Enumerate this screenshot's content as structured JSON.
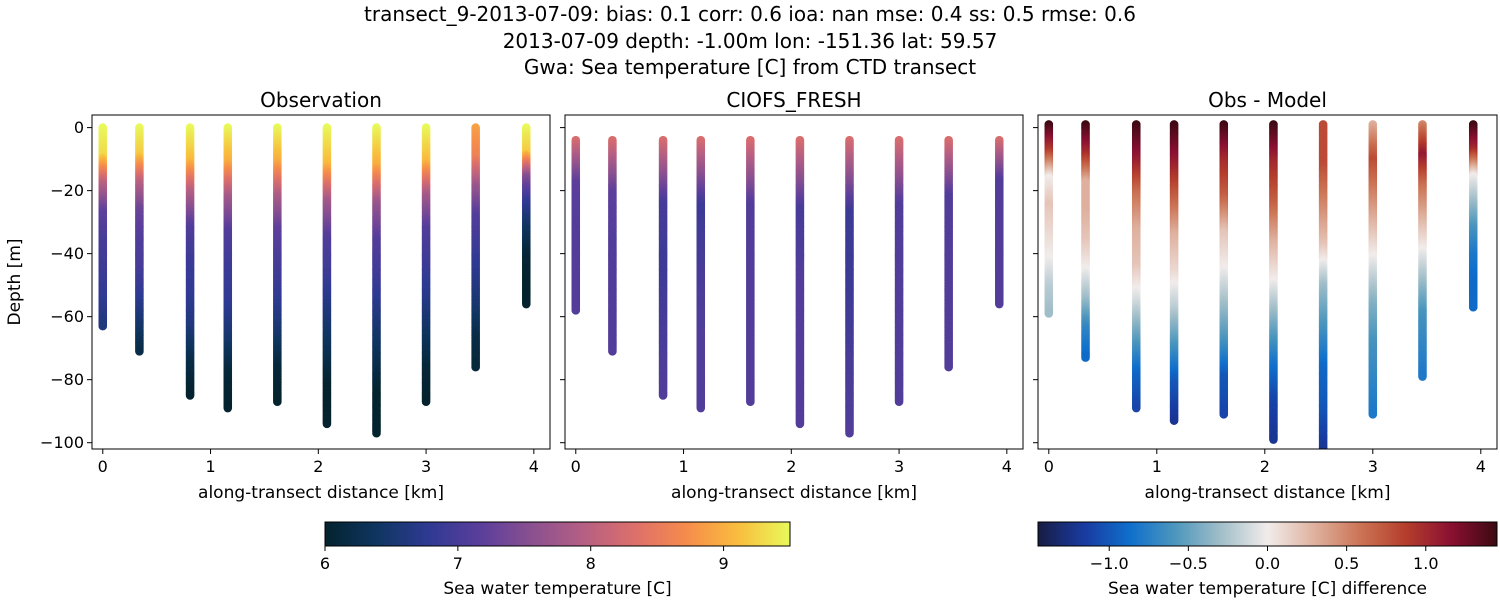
{
  "figure": {
    "title_lines": [
      "transect_9-2013-07-09: bias: 0.1  corr: 0.6  ioa: nan  mse: 0.4  ss: 0.5  rmse: 0.6",
      "2013-07-09 depth: -1.00m lon: -151.36 lat: 59.57",
      "Gwa: Sea temperature [C] from CTD transect"
    ]
  },
  "chart_data": [
    {
      "type": "scatter",
      "panel": "observation",
      "title": "Observation",
      "xlabel": "along-transect distance [km]",
      "ylabel": "Depth [m]",
      "xlim": [
        -0.1,
        4.15
      ],
      "ylim": [
        -102,
        4
      ],
      "xticks": [
        0,
        1,
        2,
        3,
        4
      ],
      "yticks": [
        0,
        -20,
        -40,
        -60,
        -80,
        -100
      ],
      "colormap": "thermal",
      "clim": [
        6,
        9.5
      ],
      "profiles": [
        {
          "x": 0.0,
          "max_depth": -63,
          "temps": [
            9.5,
            9.3,
            8.0,
            7.2,
            7.0,
            6.9,
            6.8,
            6.6
          ]
        },
        {
          "x": 0.34,
          "max_depth": -71,
          "temps": [
            9.5,
            9.2,
            8.0,
            7.3,
            7.1,
            7.0,
            6.8,
            6.5,
            6.2
          ]
        },
        {
          "x": 0.81,
          "max_depth": -85,
          "temps": [
            9.5,
            9.1,
            7.9,
            7.1,
            6.9,
            6.8,
            6.6,
            6.2,
            6.0
          ]
        },
        {
          "x": 1.16,
          "max_depth": -89,
          "temps": [
            9.5,
            9.0,
            7.8,
            7.1,
            6.9,
            6.8,
            6.5,
            6.1,
            6.0
          ]
        },
        {
          "x": 1.62,
          "max_depth": -87,
          "temps": [
            9.5,
            9.0,
            7.9,
            7.2,
            7.0,
            6.8,
            6.5,
            6.1,
            6.0
          ]
        },
        {
          "x": 2.08,
          "max_depth": -94,
          "temps": [
            9.5,
            9.1,
            7.8,
            7.1,
            6.9,
            6.6,
            6.3,
            6.0,
            6.0
          ]
        },
        {
          "x": 2.54,
          "max_depth": -97,
          "temps": [
            9.5,
            9.0,
            7.7,
            7.1,
            6.9,
            6.6,
            6.3,
            6.0,
            6.0
          ]
        },
        {
          "x": 3.0,
          "max_depth": -87,
          "temps": [
            9.5,
            9.1,
            7.8,
            7.1,
            6.9,
            6.7,
            6.4,
            6.1,
            6.0
          ]
        },
        {
          "x": 3.46,
          "max_depth": -76,
          "temps": [
            8.9,
            8.6,
            7.7,
            7.1,
            6.9,
            6.7,
            6.5,
            6.2,
            6.1
          ]
        },
        {
          "x": 3.93,
          "max_depth": -56,
          "temps": [
            9.5,
            9.2,
            7.5,
            6.8,
            6.4,
            6.1,
            6.0,
            6.0
          ]
        }
      ]
    },
    {
      "type": "scatter",
      "panel": "model",
      "title": "CIOFS_FRESH",
      "xlabel": "along-transect distance [km]",
      "xlim": [
        -0.1,
        4.15
      ],
      "ylim": [
        -102,
        4
      ],
      "xticks": [
        0,
        1,
        2,
        3,
        4
      ],
      "colormap": "thermal",
      "clim": [
        6,
        9.5
      ],
      "profiles": [
        {
          "x": 0.0,
          "min_depth": -4,
          "max_depth": -58,
          "temps": [
            8.3,
            7.2,
            7.1,
            7.1,
            7.1
          ]
        },
        {
          "x": 0.34,
          "min_depth": -4,
          "max_depth": -71,
          "temps": [
            8.3,
            7.2,
            7.1,
            7.1,
            7.1
          ]
        },
        {
          "x": 0.81,
          "min_depth": -4,
          "max_depth": -85,
          "temps": [
            8.3,
            7.0,
            6.9,
            7.0,
            7.1
          ]
        },
        {
          "x": 1.16,
          "min_depth": -4,
          "max_depth": -89,
          "temps": [
            8.3,
            6.9,
            7.0,
            7.1,
            7.1
          ]
        },
        {
          "x": 1.62,
          "min_depth": -4,
          "max_depth": -87,
          "temps": [
            8.3,
            7.1,
            7.1,
            7.1,
            7.1
          ]
        },
        {
          "x": 2.08,
          "min_depth": -4,
          "max_depth": -94,
          "temps": [
            8.3,
            7.0,
            7.1,
            7.1,
            7.1
          ]
        },
        {
          "x": 2.54,
          "min_depth": -4,
          "max_depth": -97,
          "temps": [
            8.3,
            6.9,
            6.9,
            7.0,
            7.1
          ]
        },
        {
          "x": 3.0,
          "min_depth": -4,
          "max_depth": -87,
          "temps": [
            8.3,
            7.1,
            7.1,
            7.1,
            7.1
          ]
        },
        {
          "x": 3.46,
          "min_depth": -4,
          "max_depth": -76,
          "temps": [
            8.3,
            7.1,
            7.1,
            7.1,
            7.1
          ]
        },
        {
          "x": 3.93,
          "min_depth": -4,
          "max_depth": -56,
          "temps": [
            8.3,
            7.1,
            7.1,
            7.1,
            7.1
          ]
        }
      ]
    },
    {
      "type": "scatter",
      "panel": "difference",
      "title": "Obs - Model",
      "xlabel": "along-transect distance [km]",
      "xlim": [
        -0.1,
        4.15
      ],
      "ylim": [
        -102,
        4
      ],
      "xticks": [
        0,
        1,
        2,
        3,
        4
      ],
      "colormap": "balance",
      "clim": [
        -1.45,
        1.45
      ],
      "profiles": [
        {
          "x": 0.0,
          "min_depth": 1,
          "max_depth": -59,
          "diffs": [
            1.45,
            0.9,
            0.0,
            0.2,
            0.1,
            0.0,
            -0.2,
            -0.3
          ]
        },
        {
          "x": 0.34,
          "min_depth": 1,
          "max_depth": -73,
          "diffs": [
            1.45,
            1.0,
            0.3,
            0.3,
            0.2,
            0.0,
            -0.3,
            -0.7,
            -0.9
          ]
        },
        {
          "x": 0.81,
          "min_depth": 1,
          "max_depth": -89,
          "diffs": [
            1.45,
            1.1,
            0.6,
            0.3,
            0.2,
            -0.1,
            -0.5,
            -0.9,
            -1.1
          ]
        },
        {
          "x": 1.16,
          "min_depth": 1,
          "max_depth": -93,
          "diffs": [
            1.45,
            1.1,
            0.7,
            0.3,
            0.1,
            -0.2,
            -0.6,
            -1.0,
            -1.2
          ]
        },
        {
          "x": 1.62,
          "min_depth": 1,
          "max_depth": -91,
          "diffs": [
            1.45,
            1.0,
            0.7,
            0.2,
            0.0,
            -0.3,
            -0.6,
            -1.0,
            -1.1
          ]
        },
        {
          "x": 2.08,
          "min_depth": 1,
          "max_depth": -99,
          "diffs": [
            1.45,
            1.0,
            0.7,
            0.3,
            0.0,
            -0.4,
            -0.8,
            -1.1,
            -1.2
          ]
        },
        {
          "x": 2.54,
          "min_depth": 1,
          "max_depth": -102,
          "diffs": [
            0.8,
            0.8,
            0.5,
            0.2,
            -0.3,
            -0.6,
            -0.9,
            -1.0,
            -1.2
          ]
        },
        {
          "x": 3.0,
          "min_depth": 1,
          "max_depth": -91,
          "diffs": [
            0.3,
            0.8,
            0.5,
            0.2,
            -0.1,
            -0.4,
            -0.6,
            -0.7,
            -0.8
          ]
        },
        {
          "x": 3.46,
          "min_depth": 1,
          "max_depth": -79,
          "diffs": [
            0.5,
            1.1,
            0.6,
            0.3,
            0.0,
            -0.3,
            -0.6,
            -0.7,
            -0.8
          ]
        },
        {
          "x": 3.93,
          "min_depth": 1,
          "max_depth": -57,
          "diffs": [
            1.45,
            1.0,
            0.0,
            -0.3,
            -0.6,
            -0.8,
            -0.9,
            -0.9
          ]
        }
      ]
    }
  ],
  "colorbars": [
    {
      "name": "temperature",
      "label": "Sea water temperature [C]",
      "range": [
        6,
        9.5
      ],
      "ticks": [
        6,
        7,
        8,
        9
      ],
      "colormap": "thermal"
    },
    {
      "name": "difference",
      "label": "Sea water temperature [C] difference",
      "range": [
        -1.45,
        1.45
      ],
      "ticks": [
        -1.0,
        -0.5,
        0.0,
        0.5,
        1.0
      ],
      "tick_labels": [
        "−1.0",
        "−0.5",
        "0.0",
        "0.5",
        "1.0"
      ],
      "colormap": "balance"
    }
  ],
  "colormaps": {
    "thermal": [
      "#04232e",
      "#0f3560",
      "#2e3a93",
      "#5a3e9c",
      "#8a5090",
      "#b55f83",
      "#dd6f6b",
      "#f68c4b",
      "#f9bd3d",
      "#e8fa5b"
    ],
    "balance": [
      "#181c43",
      "#193aa0",
      "#0f6fcc",
      "#4d97bd",
      "#a3bfc9",
      "#f1eceb",
      "#dfb2a0",
      "#cc7556",
      "#b53e2c",
      "#8a1031",
      "#3c0912"
    ]
  }
}
